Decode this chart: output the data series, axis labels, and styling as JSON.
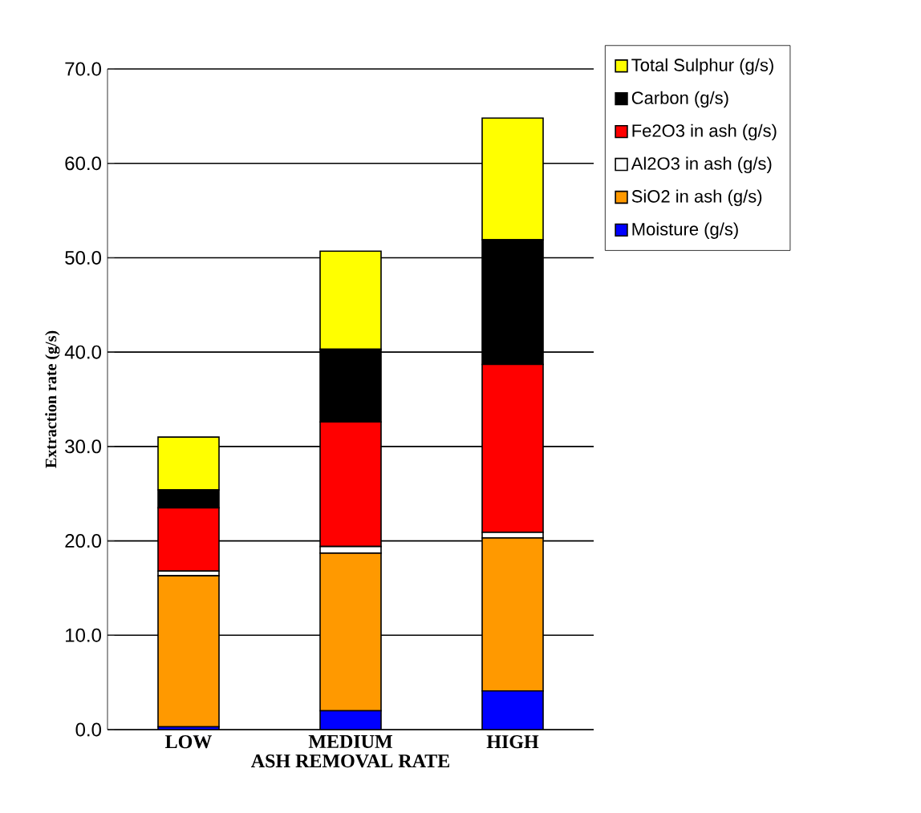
{
  "chart_data": {
    "type": "bar",
    "stacked": true,
    "xlabel": "ASH REMOVAL RATE",
    "ylabel": "Extraction rate (g/s)",
    "categories": [
      "LOW",
      "MEDIUM",
      "HIGH"
    ],
    "series": [
      {
        "name": "Moisture (g/s)",
        "color": "#0000ff",
        "values": [
          0.3,
          2.0,
          4.1
        ]
      },
      {
        "name": "SiO2 in ash (g/s)",
        "color": "#ff9900",
        "values": [
          16.0,
          16.7,
          16.2
        ]
      },
      {
        "name": "Al2O3 in ash (g/s)",
        "color": "#ffffff",
        "values": [
          0.5,
          0.7,
          0.6
        ]
      },
      {
        "name": "Fe2O3 in ash (g/s)",
        "color": "#ff0000",
        "values": [
          6.7,
          13.2,
          17.8
        ]
      },
      {
        "name": "Carbon (g/s)",
        "color": "#000000",
        "values": [
          1.9,
          7.7,
          13.2
        ]
      },
      {
        "name": "Total Sulphur (g/s)",
        "color": "#ffff00",
        "values": [
          5.6,
          10.4,
          12.9
        ]
      }
    ],
    "ylim": [
      0,
      70
    ],
    "yticks": [
      {
        "value": 0,
        "label": "0.0"
      },
      {
        "value": 10,
        "label": "10.0"
      },
      {
        "value": 20,
        "label": "20.0"
      },
      {
        "value": 30,
        "label": "30.0"
      },
      {
        "value": 40,
        "label": "40.0"
      },
      {
        "value": 50,
        "label": "50.0"
      },
      {
        "value": 60,
        "label": "60.0"
      },
      {
        "value": 70,
        "label": "70.0"
      }
    ],
    "grid": "y",
    "legend": "right"
  }
}
